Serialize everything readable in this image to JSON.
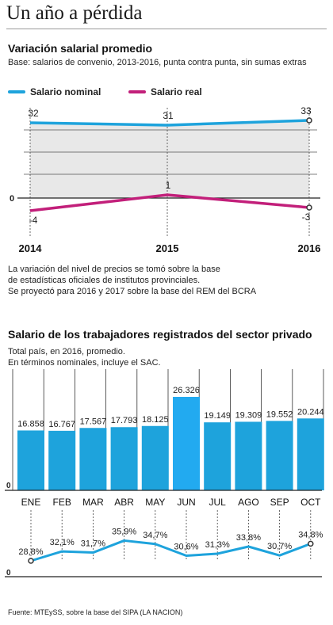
{
  "header": {
    "title": "Un año a pérdida"
  },
  "section1": {
    "title": "Variación salarial promedio",
    "subtitle": "Base: salarios de convenio, 2013-2016, punta contra punta, sin sumas extras",
    "legend_nominal": "Salario nominal",
    "legend_real": "Salario real",
    "note_lines": [
      "La variación del nivel de precios se tomó sobre la base",
      "de estadísticas oficiales de institutos provinciales.",
      "Se proyectó para 2016 y 2017 sobre la base del REM del BCRA"
    ]
  },
  "section2": {
    "title": "Salario de los trabajadores registrados del sector privado",
    "subtitle_lines": [
      "Total país, en 2016, promedio.",
      "En términos nominales, incluye el SAC."
    ]
  },
  "source": "Fuente: MTEySS, sobre la base del SIPA (LA NACION)",
  "colors": {
    "nominal": "#1ea3dc",
    "real": "#c21f7a",
    "bar": "#1ea3dc",
    "bar_highlight": "#22aaf0",
    "band": "#e8e8e8"
  },
  "chart_data": [
    {
      "type": "line",
      "title": "Variación salarial promedio",
      "x": [
        "2014",
        "2015",
        "2016"
      ],
      "series": [
        {
          "name": "Salario nominal",
          "values": [
            32,
            31,
            33
          ],
          "labels": [
            "32",
            "31",
            "33"
          ]
        },
        {
          "name": "Salario real",
          "values": [
            -4,
            1,
            -3
          ],
          "labels": [
            "-4",
            "1",
            "-3"
          ]
        }
      ],
      "y_zero_label": "0",
      "grid": true
    },
    {
      "type": "bar",
      "title": "Salario de los trabajadores registrados del sector privado",
      "categories": [
        "ENE",
        "FEB",
        "MAR",
        "ABR",
        "MAY",
        "JUN",
        "JUL",
        "AGO",
        "SEP",
        "OCT"
      ],
      "values": [
        16858,
        16767,
        17567,
        17793,
        18125,
        26326,
        19149,
        19309,
        19552,
        20244
      ],
      "labels": [
        "16.858",
        "16.767",
        "17.567",
        "17.793",
        "18.125",
        "26.326",
        "19.149",
        "19.309",
        "19.552",
        "20.244"
      ],
      "highlight": "JUN",
      "y_zero_label": "0"
    },
    {
      "type": "line",
      "categories": [
        "ENE",
        "FEB",
        "MAR",
        "ABR",
        "MAY",
        "JUN",
        "JUL",
        "AGO",
        "SEP",
        "OCT"
      ],
      "values": [
        28.8,
        32.1,
        31.7,
        35.9,
        34.7,
        30.6,
        31.3,
        33.8,
        30.7,
        34.8
      ],
      "labels": [
        "28,8%",
        "32,1%",
        "31,7%",
        "35,9%",
        "34,7%",
        "30,6%",
        "31,3%",
        "33,8%",
        "30,7%",
        "34,8%"
      ],
      "y_zero_label": "0"
    }
  ]
}
